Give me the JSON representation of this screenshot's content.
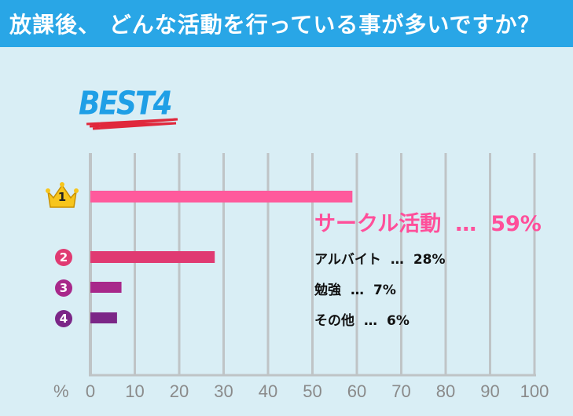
{
  "header": {
    "title": "放課後、 どんな活動を行っている事が多いですか？"
  },
  "badge": {
    "text": "BEST4"
  },
  "chart_data": {
    "type": "bar",
    "orientation": "horizontal",
    "categories": [
      "サークル活動",
      "アルバイト",
      "勉強",
      "その他"
    ],
    "values": [
      59,
      28,
      7,
      6
    ],
    "ranks": [
      "1",
      "2",
      "3",
      "4"
    ],
    "xlim": [
      0,
      100
    ],
    "x_ticks": [
      "0",
      "10",
      "20",
      "30",
      "40",
      "50",
      "60",
      "70",
      "80",
      "90",
      "100"
    ],
    "x_unit": "%",
    "ellipsis": "…",
    "value_suffix": "%",
    "grid": true,
    "colors": [
      "#ff5a9c",
      "#e03a72",
      "#a8288a",
      "#7b2687"
    ]
  }
}
